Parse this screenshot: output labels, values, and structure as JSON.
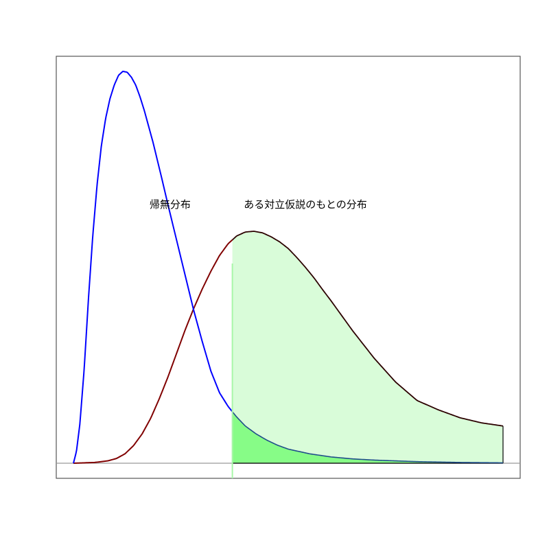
{
  "chart_data": {
    "type": "area",
    "title": "",
    "xlabel": "",
    "ylabel": "",
    "xlim": [
      0,
      10
    ],
    "ylim": [
      0,
      1.04
    ],
    "grid": false,
    "series": [
      {
        "x": [
          0,
          0.07,
          0.15,
          0.25,
          0.35,
          0.45,
          0.55,
          0.65,
          0.75,
          0.85,
          0.95,
          1.05,
          1.15,
          1.25,
          1.35,
          1.45,
          1.55,
          1.65,
          1.75,
          1.85,
          1.95,
          2.05,
          2.2,
          2.4,
          2.6,
          2.8,
          3.0,
          3.2,
          3.4,
          3.6,
          3.8,
          4.0,
          4.25,
          4.5,
          4.75,
          5.0,
          5.5,
          6.0,
          6.5,
          7.0,
          7.5,
          8.0,
          8.5,
          9.0,
          9.5,
          10
        ],
        "y": [
          0,
          0.03,
          0.1,
          0.24,
          0.42,
          0.58,
          0.71,
          0.81,
          0.88,
          0.93,
          0.965,
          0.99,
          1.0,
          0.998,
          0.985,
          0.965,
          0.935,
          0.9,
          0.86,
          0.82,
          0.775,
          0.73,
          0.66,
          0.57,
          0.48,
          0.39,
          0.31,
          0.235,
          0.18,
          0.145,
          0.118,
          0.095,
          0.075,
          0.059,
          0.046,
          0.036,
          0.024,
          0.016,
          0.011,
          0.008,
          0.006,
          0.004,
          0.003,
          0.002,
          0.0015,
          0.001
        ],
        "color": "#0000ff"
      },
      {
        "x": [
          0,
          0.5,
          0.8,
          1.0,
          1.2,
          1.4,
          1.6,
          1.8,
          2.0,
          2.2,
          2.4,
          2.6,
          2.8,
          3.0,
          3.2,
          3.4,
          3.6,
          3.8,
          4.0,
          4.2,
          4.4,
          4.6,
          4.8,
          5.0,
          5.2,
          5.4,
          5.6,
          5.8,
          6.0,
          6.5,
          7.0,
          7.5,
          8.0,
          8.5,
          9.0,
          9.5,
          10
        ],
        "y": [
          0,
          0.002,
          0.006,
          0.012,
          0.024,
          0.045,
          0.075,
          0.115,
          0.165,
          0.22,
          0.28,
          0.34,
          0.395,
          0.445,
          0.49,
          0.53,
          0.56,
          0.58,
          0.59,
          0.592,
          0.588,
          0.578,
          0.565,
          0.548,
          0.525,
          0.5,
          0.473,
          0.443,
          0.414,
          0.338,
          0.268,
          0.207,
          0.16,
          0.136,
          0.116,
          0.103,
          0.095
        ],
        "color": "#800000"
      }
    ],
    "critical_value": 3.7,
    "shading": {
      "alternative_region_color": "#d9fcd9",
      "null_region_color": "#87fc87",
      "critical_line_color": "#a8f7a8"
    },
    "annotations": [
      {
        "text": "帰無分布",
        "x": 2.25,
        "y": 0.66
      },
      {
        "text": "ある対立仮説のもとの分布",
        "x": 5.4,
        "y": 0.66
      }
    ]
  }
}
